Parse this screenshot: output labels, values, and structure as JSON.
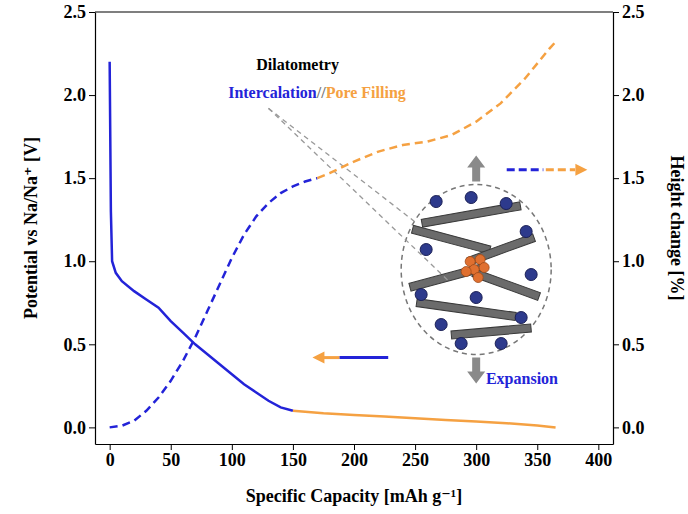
{
  "chart_data": {
    "type": "line",
    "x_label": "Specific Capacity [mAh g⁻¹]",
    "y_label": "Potential vs Na/Na⁺ [V]",
    "y2_label": "Height change [%]",
    "xlim": [
      -12,
      412
    ],
    "xticks": [
      0,
      50,
      100,
      150,
      200,
      250,
      300,
      350,
      400
    ],
    "ylim": [
      -0.1,
      2.5
    ],
    "yticks": [
      {
        "value": 0,
        "label": "0.0"
      },
      {
        "value": 0.5,
        "label": "0.5"
      },
      {
        "value": 1,
        "label": "1.0"
      },
      {
        "value": 1.5,
        "label": "1.5"
      },
      {
        "value": 2,
        "label": "2.0"
      },
      {
        "value": 2.5,
        "label": "2.5"
      }
    ],
    "y2lim": [
      -0.1,
      2.5
    ],
    "y2ticks": [
      {
        "value": 0,
        "label": "0.0"
      },
      {
        "value": 0.5,
        "label": "0.5"
      },
      {
        "value": 1,
        "label": "1.0"
      },
      {
        "value": 1.5,
        "label": "1.5"
      },
      {
        "value": 2,
        "label": "2.0"
      },
      {
        "value": 2.5,
        "label": "2.5"
      }
    ],
    "grid": false,
    "annotations": [
      "Dilatometry",
      "Intercalation",
      "//",
      "Pore Filling",
      "Expansion"
    ],
    "series": [
      {
        "color": "#2323d8",
        "line_style": "solid",
        "x": [
          0,
          1,
          2,
          5,
          10,
          20,
          30,
          40,
          50,
          60,
          70,
          80,
          90,
          100,
          110,
          120,
          130,
          140,
          150
        ],
        "values": [
          2.2,
          1.3,
          1.0,
          0.93,
          0.88,
          0.82,
          0.77,
          0.72,
          0.64,
          0.57,
          0.5,
          0.44,
          0.38,
          0.32,
          0.26,
          0.21,
          0.16,
          0.12,
          0.1
        ]
      },
      {
        "color": "#f5a142",
        "line_style": "solid",
        "x": [
          150,
          175,
          200,
          225,
          250,
          275,
          300,
          325,
          350,
          365
        ],
        "values": [
          0.1,
          0.085,
          0.075,
          0.065,
          0.055,
          0.045,
          0.035,
          0.025,
          0.012,
          0.0
        ]
      },
      {
        "color": "#2323d8",
        "line_style": "dashed",
        "axis": "y2",
        "x": [
          0,
          10,
          20,
          30,
          40,
          50,
          60,
          70,
          80,
          90,
          100,
          110,
          120,
          130,
          140,
          150,
          160,
          170
        ],
        "values": [
          0,
          0.01,
          0.04,
          0.1,
          0.18,
          0.28,
          0.4,
          0.54,
          0.7,
          0.86,
          1.02,
          1.16,
          1.27,
          1.35,
          1.41,
          1.45,
          1.48,
          1.5
        ]
      },
      {
        "color": "#f5a142",
        "line_style": "dashed",
        "axis": "y2",
        "x": [
          170,
          180,
          200,
          220,
          240,
          260,
          280,
          300,
          320,
          340,
          360,
          365
        ],
        "values": [
          1.5,
          1.53,
          1.6,
          1.66,
          1.7,
          1.72,
          1.76,
          1.84,
          1.95,
          2.1,
          2.28,
          2.32
        ]
      }
    ]
  }
}
